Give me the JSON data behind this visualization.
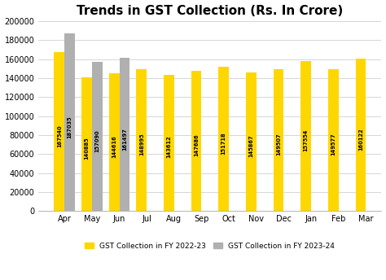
{
  "title": "Trends in GST Collection (Rs. In Crore)",
  "months": [
    "Apr",
    "May",
    "Jun",
    "Jul",
    "Aug",
    "Sep",
    "Oct",
    "Nov",
    "Dec",
    "Jan",
    "Feb",
    "Mar"
  ],
  "fy2223": [
    167540,
    140885,
    144616,
    148995,
    143612,
    147686,
    151718,
    145867,
    149507,
    157554,
    149577,
    160122
  ],
  "fy2324": [
    187035,
    157090,
    161497,
    null,
    null,
    null,
    null,
    null,
    null,
    null,
    null,
    null
  ],
  "color_2223": "#FFD700",
  "color_2324": "#B0B0B0",
  "ylim": [
    0,
    200000
  ],
  "yticks": [
    0,
    20000,
    40000,
    60000,
    80000,
    100000,
    120000,
    140000,
    160000,
    180000,
    200000
  ],
  "legend_2223": "GST Collection in FY 2022-23",
  "legend_2324": "GST Collection in FY 2023-24",
  "bar_width": 0.38,
  "label_fontsize": 4.8,
  "title_fontsize": 11,
  "tick_fontsize": 7
}
